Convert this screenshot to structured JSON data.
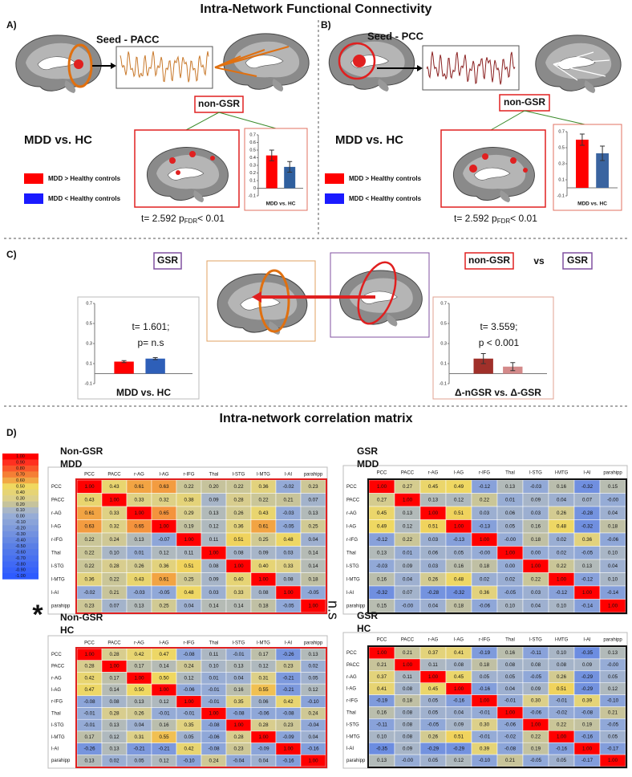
{
  "title": "Intra-Network Functional Connectivity",
  "section_d_title": "Intra-network correlation matrix",
  "panel_a": {
    "label": "A)",
    "seed": "Seed - PACC",
    "tag": "non-GSR",
    "heading": "MDD vs. HC",
    "legend": [
      "MDD > Healthy controls",
      "MDD < Healthy controls"
    ],
    "stat": {
      "pre": "t= 2.592 p",
      "sub": "FDR",
      "post": "< 0.01"
    },
    "chart": {
      "type": "bar",
      "xlabel": "MDD vs. HC",
      "values": [
        0.43,
        0.28
      ],
      "errors": [
        0.07,
        0.07
      ],
      "colors": [
        "#ff0000",
        "#2f5f9e"
      ],
      "ylim": [
        -0.1,
        0.7
      ],
      "yticks": [
        0.7,
        0.6,
        0.5,
        0.4,
        0.3,
        0.2,
        0.1,
        0,
        -0.1
      ]
    }
  },
  "panel_b": {
    "label": "B)",
    "seed": "Seed - PCC",
    "tag": "non-GSR",
    "heading": "MDD vs. HC",
    "legend": [
      "MDD > Healthy controls",
      "MDD < Healthy controls"
    ],
    "stat": {
      "pre": "t= 2.592 p",
      "sub": "FDR",
      "post": "< 0.01"
    },
    "chart": {
      "type": "bar",
      "xlabel": "MDD vs. HC",
      "values": [
        0.6,
        0.43
      ],
      "errors": [
        0.07,
        0.09
      ],
      "colors": [
        "#ff0000",
        "#3a64a0"
      ],
      "ylim": [
        -0.1,
        0.7
      ],
      "yticks": [
        0.7,
        0.5,
        0.3,
        0.1,
        -0.1
      ]
    }
  },
  "panel_c": {
    "label": "C)",
    "left": {
      "tag": "GSR",
      "stat": [
        "t= 1.601;",
        "p= n.s"
      ],
      "chart": {
        "type": "bar",
        "xlabel": "MDD vs. HC",
        "values": [
          0.12,
          0.15
        ],
        "errors": [
          0.01,
          0.01
        ],
        "colors": [
          "#ff0000",
          "#2e5fb8"
        ],
        "ylim": [
          -0.1,
          0.7
        ],
        "yticks": [
          0.7,
          0.5,
          0.3,
          0.1,
          -0.1
        ]
      }
    },
    "right": {
      "tag": "non-GSR",
      "vs": "vs",
      "tag2": "GSR",
      "stat": [
        "t= 3.559;",
        "p < 0.001"
      ],
      "chart": {
        "type": "bar",
        "xlabel": "Δ-nGSR vs. Δ-GSR",
        "values": [
          0.15,
          0.07
        ],
        "errors": [
          0.05,
          0.04
        ],
        "colors": [
          "#a0302a",
          "#d48a8a"
        ],
        "ylim": [
          -0.1,
          0.7
        ],
        "yticks": [
          0.7,
          0.5,
          0.3,
          0.1,
          -0.1
        ]
      }
    }
  },
  "panel_d": {
    "label": "D)",
    "between": [
      "*",
      "n.s"
    ],
    "colorbar": [
      "1.00",
      "0.90",
      "0.80",
      "0.70",
      "0.60",
      "0.50",
      "0.40",
      "0.30",
      "0.20",
      "0.10",
      "0.00",
      "-0.10",
      "-0.20",
      "-0.30",
      "-0.40",
      "-0.50",
      "-0.60",
      "-0.70",
      "-0.80",
      "-0.90",
      "-1.00"
    ],
    "regions": [
      "PCC",
      "PACC",
      "r-AG",
      "l-AG",
      "r-IFG",
      "Thal",
      "l-STG",
      "l-MTG",
      "l-AI",
      "parahipp"
    ],
    "matrices": [
      {
        "title": [
          "Non-GSR",
          "MDD"
        ],
        "cells": [
          [
            "1.00",
            "0.43",
            "0.61",
            "0.63",
            "0.22",
            "0.20",
            "0.22",
            "0.36",
            "-0.02",
            "0.23"
          ],
          [
            "0.43",
            "1.00",
            "0.33",
            "0.32",
            "0.38",
            "0.09",
            "0.28",
            "0.22",
            "0.21",
            "0.07"
          ],
          [
            "0.61",
            "0.33",
            "1.00",
            "0.65",
            "0.29",
            "0.13",
            "0.26",
            "0.43",
            "-0.03",
            "0.13"
          ],
          [
            "0.63",
            "0.32",
            "0.65",
            "1.00",
            "0.19",
            "0.12",
            "0.36",
            "0.61",
            "-0.05",
            "0.25"
          ],
          [
            "0.22",
            "0.24",
            "0.13",
            "-0.07",
            "1.00",
            "0.11",
            "0.51",
            "0.25",
            "0.48",
            "0.04"
          ],
          [
            "0.22",
            "0.10",
            "0.01",
            "0.12",
            "0.11",
            "1.00",
            "0.08",
            "0.09",
            "0.03",
            "0.14"
          ],
          [
            "0.22",
            "0.28",
            "0.26",
            "0.36",
            "0.51",
            "0.08",
            "1.00",
            "0.40",
            "0.33",
            "0.14"
          ],
          [
            "0.36",
            "0.22",
            "0.43",
            "0.61",
            "0.25",
            "0.09",
            "0.40",
            "1.00",
            "0.08",
            "0.18"
          ],
          [
            "-0.02",
            "0.21",
            "-0.03",
            "-0.05",
            "0.48",
            "0.03",
            "0.33",
            "0.08",
            "1.00",
            "-0.05"
          ],
          [
            "0.23",
            "0.07",
            "0.13",
            "0.25",
            "0.04",
            "0.14",
            "0.14",
            "0.18",
            "-0.05",
            "1.00"
          ]
        ]
      },
      {
        "title": [
          "GSR",
          "MDD"
        ],
        "cells": [
          [
            "1.00",
            "0.27",
            "0.45",
            "0.49",
            "-0.12",
            "0.13",
            "-0.03",
            "0.16",
            "-0.32",
            "0.15"
          ],
          [
            "0.27",
            "1.00",
            "0.13",
            "0.12",
            "0.22",
            "0.01",
            "0.09",
            "0.04",
            "0.07",
            "-0.00"
          ],
          [
            "0.45",
            "0.13",
            "1.00",
            "0.51",
            "0.03",
            "0.06",
            "0.03",
            "0.26",
            "-0.28",
            "0.04"
          ],
          [
            "0.49",
            "0.12",
            "0.51",
            "1.00",
            "-0.13",
            "0.05",
            "0.16",
            "0.48",
            "-0.32",
            "0.18"
          ],
          [
            "-0.12",
            "0.22",
            "0.03",
            "-0.13",
            "1.00",
            "-0.00",
            "0.18",
            "0.02",
            "0.36",
            "-0.06"
          ],
          [
            "0.13",
            "0.01",
            "0.06",
            "0.05",
            "-0.00",
            "1.00",
            "0.00",
            "0.02",
            "-0.05",
            "0.10"
          ],
          [
            "-0.03",
            "0.09",
            "0.03",
            "0.16",
            "0.18",
            "0.00",
            "1.00",
            "0.22",
            "0.13",
            "0.04"
          ],
          [
            "0.16",
            "0.04",
            "0.26",
            "0.48",
            "0.02",
            "0.02",
            "0.22",
            "1.00",
            "-0.12",
            "0.10"
          ],
          [
            "-0.32",
            "0.07",
            "-0.28",
            "-0.32",
            "0.36",
            "-0.05",
            "0.03",
            "-0.12",
            "1.00",
            "-0.14"
          ],
          [
            "0.15",
            "-0.00",
            "0.04",
            "0.18",
            "-0.06",
            "0.10",
            "0.04",
            "0.10",
            "-0.14",
            "1.00"
          ]
        ]
      },
      {
        "title": [
          "Non-GSR",
          "HC"
        ],
        "cells": [
          [
            "1.00",
            "0.28",
            "0.42",
            "0.47",
            "-0.08",
            "0.11",
            "-0.01",
            "0.17",
            "-0.26",
            "0.13"
          ],
          [
            "0.28",
            "1.00",
            "0.17",
            "0.14",
            "0.24",
            "0.10",
            "0.13",
            "0.12",
            "0.23",
            "0.02"
          ],
          [
            "0.42",
            "0.17",
            "1.00",
            "0.50",
            "0.12",
            "0.01",
            "0.04",
            "0.31",
            "-0.21",
            "0.05"
          ],
          [
            "0.47",
            "0.14",
            "0.50",
            "1.00",
            "-0.06",
            "-0.01",
            "0.16",
            "0.55",
            "-0.21",
            "0.12"
          ],
          [
            "-0.08",
            "0.08",
            "0.13",
            "0.12",
            "1.00",
            "-0.01",
            "0.35",
            "0.06",
            "0.42",
            "-0.10"
          ],
          [
            "-0.01",
            "0.28",
            "0.26",
            "-0.01",
            "-0.01",
            "1.00",
            "-0.08",
            "-0.06",
            "-0.08",
            "0.24"
          ],
          [
            "-0.01",
            "0.13",
            "0.04",
            "0.16",
            "0.35",
            "-0.08",
            "1.00",
            "0.28",
            "0.23",
            "-0.04"
          ],
          [
            "0.17",
            "0.12",
            "0.31",
            "0.55",
            "0.05",
            "-0.06",
            "0.28",
            "1.00",
            "-0.09",
            "0.04"
          ],
          [
            "-0.26",
            "0.13",
            "-0.21",
            "-0.21",
            "0.42",
            "-0.08",
            "0.23",
            "-0.09",
            "1.00",
            "-0.16"
          ],
          [
            "0.13",
            "0.02",
            "0.05",
            "0.12",
            "-0.10",
            "0.24",
            "-0.04",
            "0.04",
            "-0.16",
            "1.00"
          ]
        ]
      },
      {
        "title": [
          "GSR",
          "HC"
        ],
        "cells": [
          [
            "1.00",
            "0.21",
            "0.37",
            "0.41",
            "-0.19",
            "0.16",
            "-0.11",
            "0.10",
            "-0.35",
            "0.13"
          ],
          [
            "0.21",
            "1.00",
            "0.11",
            "0.08",
            "0.18",
            "0.08",
            "0.08",
            "0.08",
            "0.09",
            "-0.00"
          ],
          [
            "0.37",
            "0.11",
            "1.00",
            "0.45",
            "0.05",
            "0.05",
            "-0.05",
            "0.26",
            "-0.29",
            "0.05"
          ],
          [
            "0.41",
            "0.08",
            "0.45",
            "1.00",
            "-0.16",
            "0.04",
            "0.09",
            "0.51",
            "-0.29",
            "0.12"
          ],
          [
            "-0.19",
            "0.18",
            "0.05",
            "-0.16",
            "1.00",
            "-0.01",
            "0.30",
            "-0.01",
            "0.39",
            "-0.10"
          ],
          [
            "0.16",
            "0.08",
            "0.05",
            "0.04",
            "-0.01",
            "1.00",
            "-0.06",
            "-0.02",
            "-0.08",
            "0.21"
          ],
          [
            "-0.11",
            "0.08",
            "-0.05",
            "0.09",
            "0.30",
            "-0.06",
            "1.00",
            "0.22",
            "0.19",
            "-0.05"
          ],
          [
            "0.10",
            "0.08",
            "0.26",
            "0.51",
            "-0.01",
            "-0.02",
            "0.22",
            "1.00",
            "-0.16",
            "0.05"
          ],
          [
            "-0.35",
            "0.09",
            "-0.29",
            "-0.29",
            "0.39",
            "-0.08",
            "0.19",
            "-0.16",
            "1.00",
            "-0.17"
          ],
          [
            "0.13",
            "-0.00",
            "0.05",
            "0.12",
            "-0.10",
            "0.21",
            "-0.05",
            "0.05",
            "-0.17",
            "1.00"
          ]
        ]
      }
    ]
  }
}
